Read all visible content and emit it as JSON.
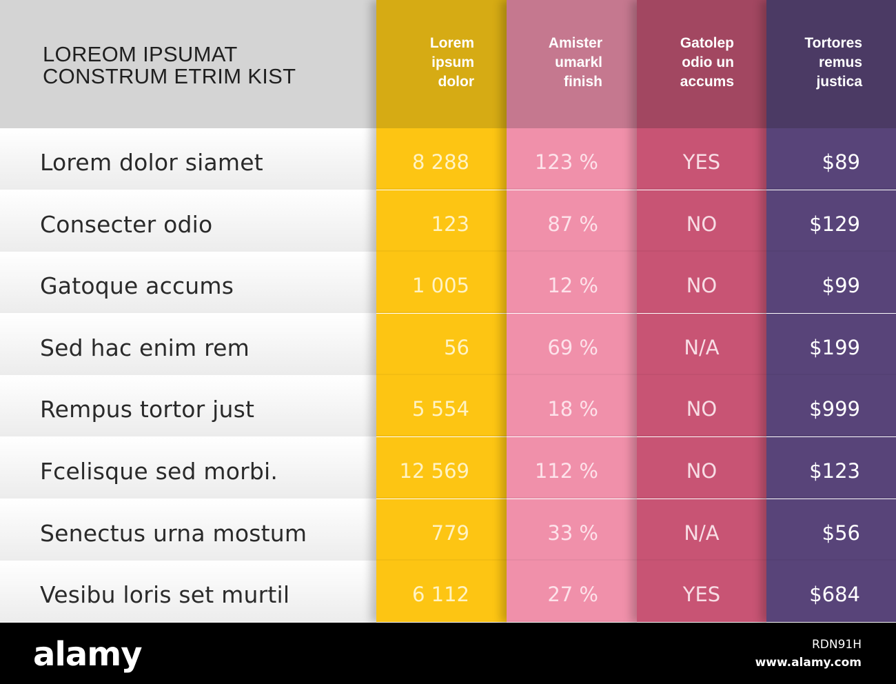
{
  "title": {
    "line1": "LOREOM IPSUMAT",
    "line2": "CONSTRUM ETRIM KIST"
  },
  "rows": [
    "Lorem dolor siamet",
    "Consecter odio",
    "Gatoque accums",
    "Sed hac enim rem",
    "Rempus tortor just",
    "Fcelisque sed morbi.",
    "Senectus urna mostum",
    "Vesibu loris set murtil"
  ],
  "columns": [
    {
      "header": [
        "Lorem",
        "ipsum",
        "dolor"
      ],
      "header_color": "#d6ab14",
      "body_color": "#fdc513",
      "text_color": "#fff3c4",
      "values": [
        "8 288",
        "123",
        "1 005",
        "56",
        "5 554",
        "12 569",
        "779",
        "6 112"
      ]
    },
    {
      "header": [
        "Amister",
        "umarkl",
        "finish"
      ],
      "header_color": "#c5788f",
      "body_color": "#f090aa",
      "text_color": "#fde2ea",
      "values": [
        "123 %",
        "87 %",
        "12 %",
        "69 %",
        "18 %",
        "112 %",
        "33 %",
        "27 %"
      ]
    },
    {
      "header": [
        "Gatolep",
        "odio un",
        "accums"
      ],
      "header_color": "#a24761",
      "body_color": "#c85474",
      "text_color": "#f8dde5",
      "values": [
        "YES",
        "NO",
        "NO",
        "N/A",
        "NO",
        "NO",
        "N/A",
        "YES"
      ]
    },
    {
      "header": [
        "Tortores",
        "remus",
        "justica"
      ],
      "header_color": "#4b3a64",
      "body_color": "#584479",
      "text_color": "#ffffff",
      "values": [
        "$89",
        "$129",
        "$99",
        "$199",
        "$999",
        "$123",
        "$56",
        "$684"
      ]
    }
  ],
  "footer": {
    "logo": "alamy",
    "image_id": "RDN91H",
    "url": "www.alamy.com"
  }
}
